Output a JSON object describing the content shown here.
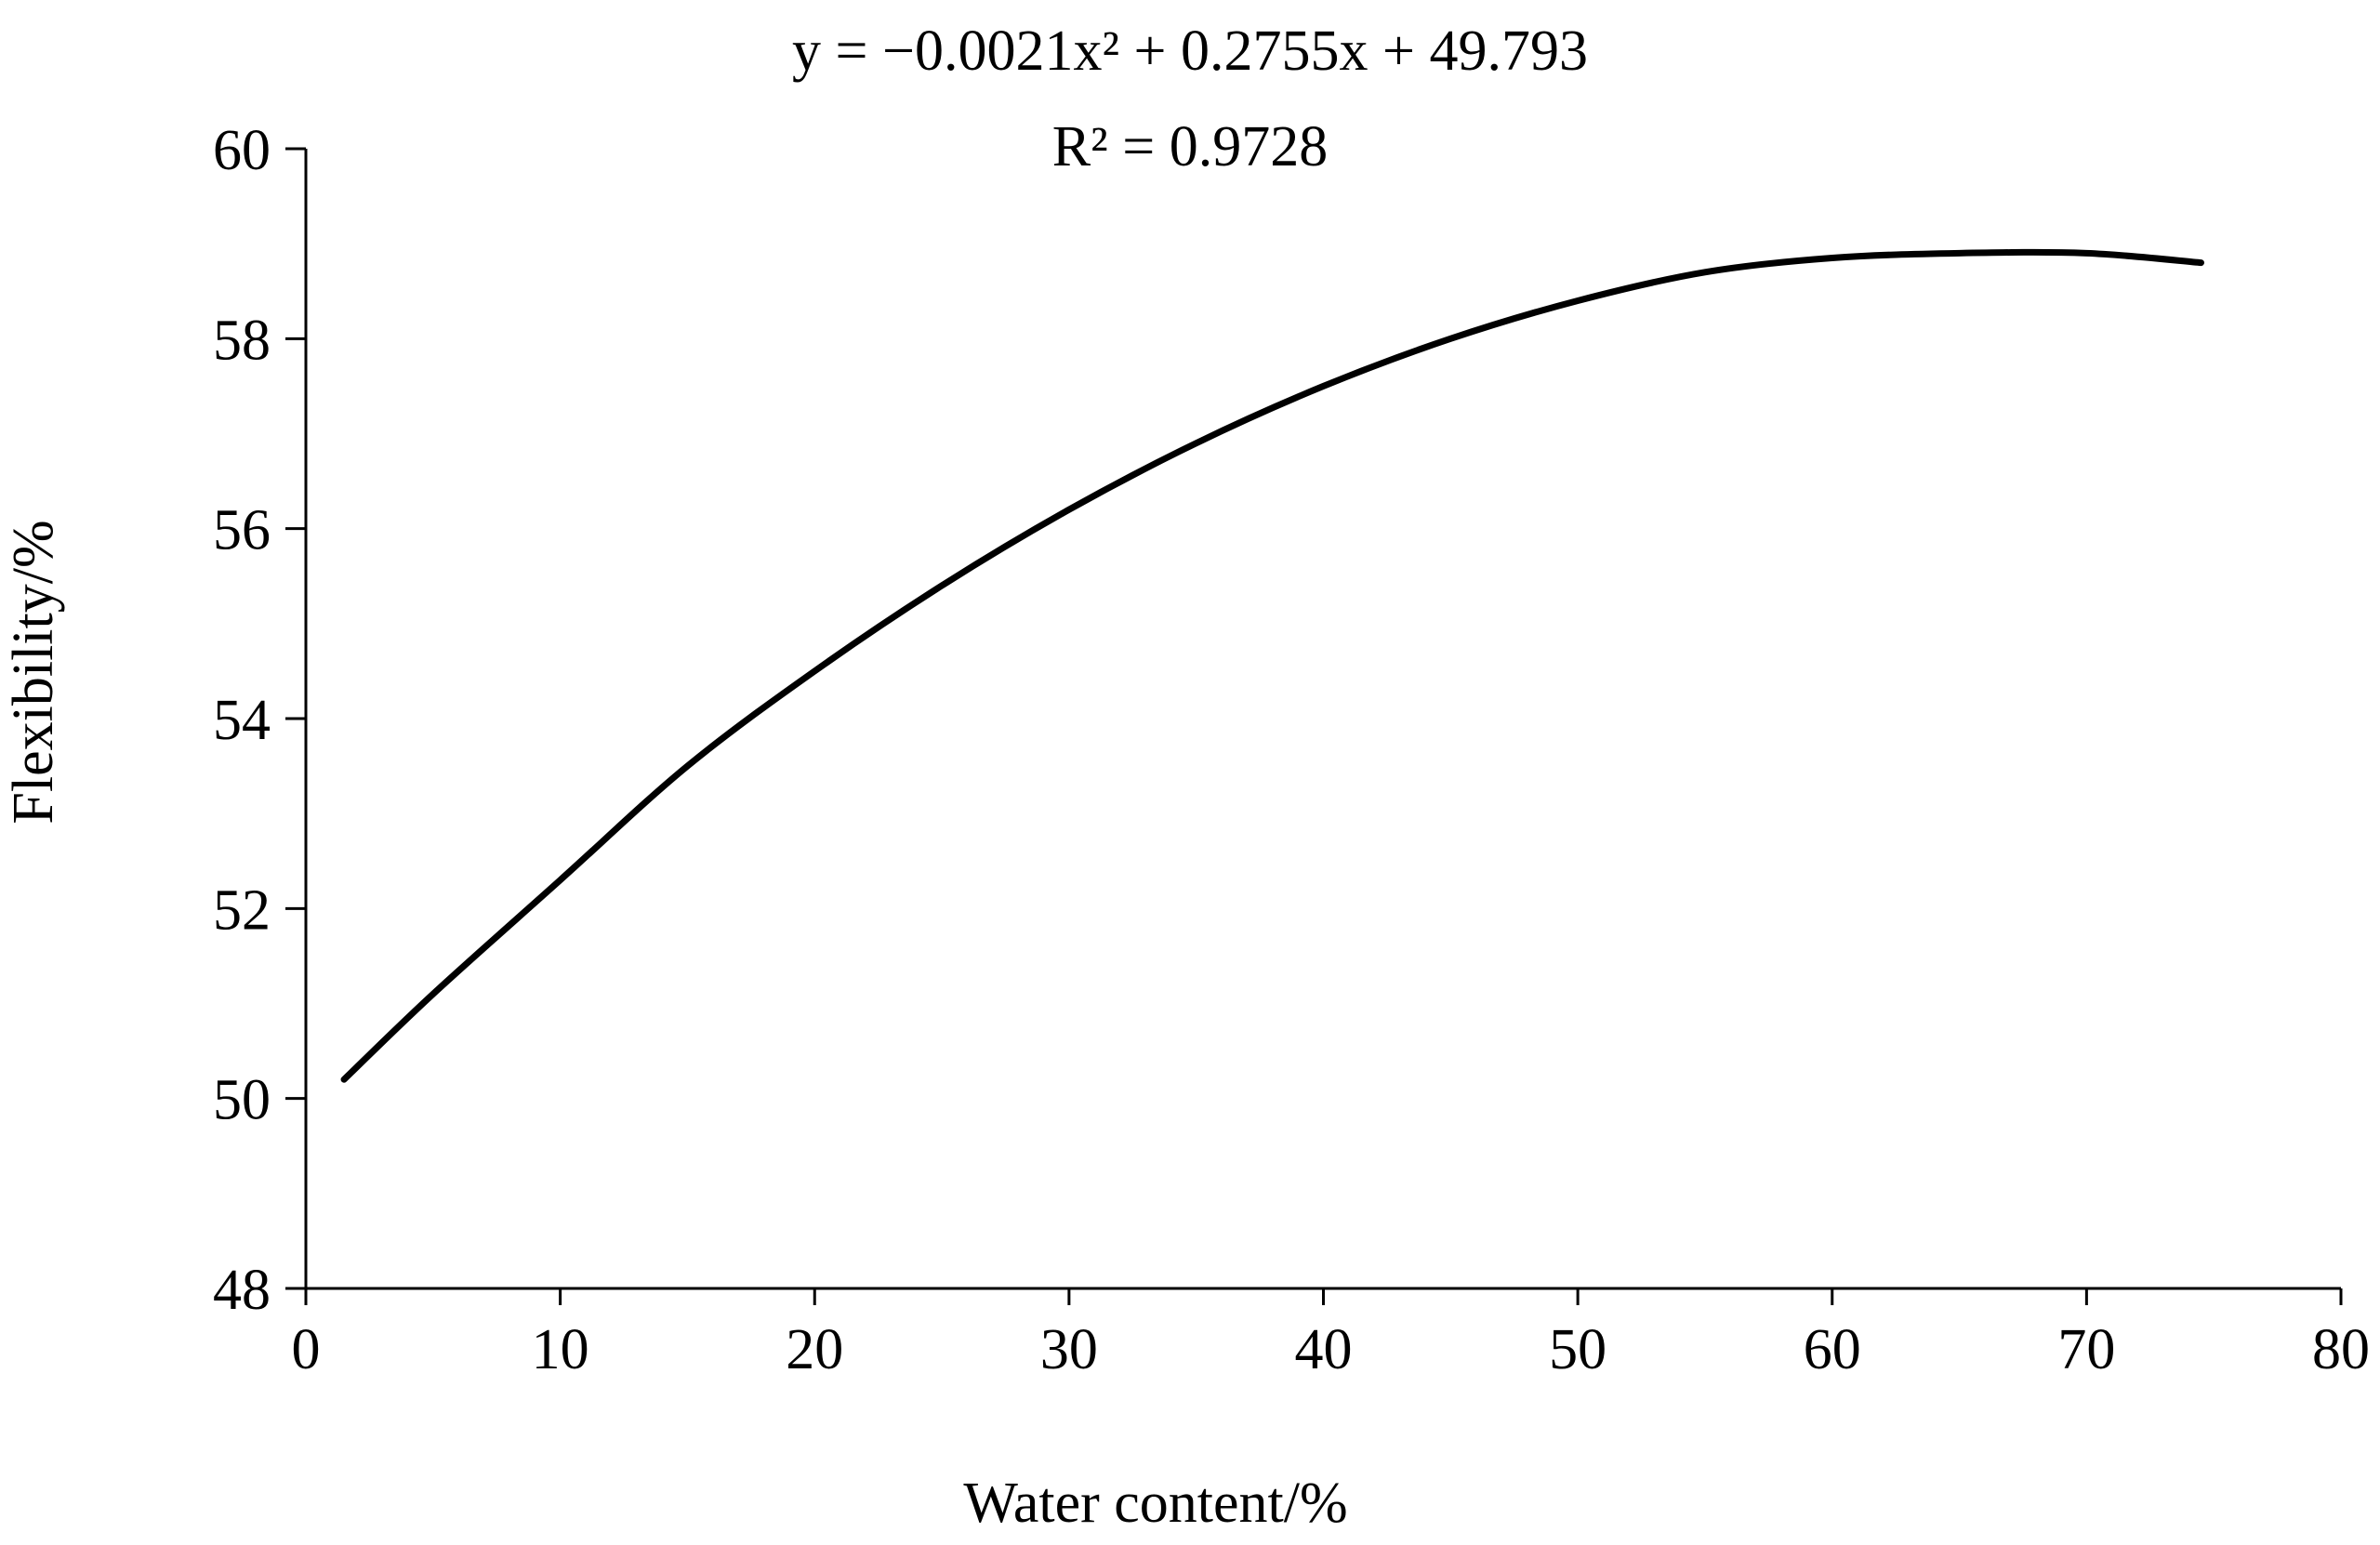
{
  "chart_data": {
    "type": "line",
    "title": "",
    "equation_line1": "y = −0.0021x² + 0.2755x + 49.793",
    "equation_line2": "R² = 0.9728",
    "xlabel": "Water content/%",
    "ylabel": "Flexibility/%",
    "xlim": [
      0,
      80
    ],
    "ylim": [
      48,
      60
    ],
    "x_ticks": [
      0,
      10,
      20,
      30,
      40,
      50,
      60,
      70,
      80
    ],
    "y_ticks": [
      48,
      50,
      52,
      54,
      56,
      58,
      60
    ],
    "x_tick_labels": [
      "0",
      "10",
      "20",
      "30",
      "40",
      "50",
      "60",
      "70",
      "80"
    ],
    "y_tick_labels": [
      "48",
      "50",
      "52",
      "54",
      "56",
      "58",
      "60"
    ],
    "grid": false,
    "legend": "none",
    "series": [
      {
        "color": "#000000",
        "x": [
          1.5,
          5,
          10,
          15,
          20,
          25,
          30,
          35,
          40,
          45,
          50,
          55,
          60,
          65,
          70,
          74.5
        ],
        "y": [
          50.2,
          51.1,
          52.3,
          53.5,
          54.5,
          55.4,
          56.2,
          56.9,
          57.5,
          58.0,
          58.4,
          58.7,
          58.85,
          58.9,
          58.9,
          58.8
        ]
      }
    ]
  }
}
